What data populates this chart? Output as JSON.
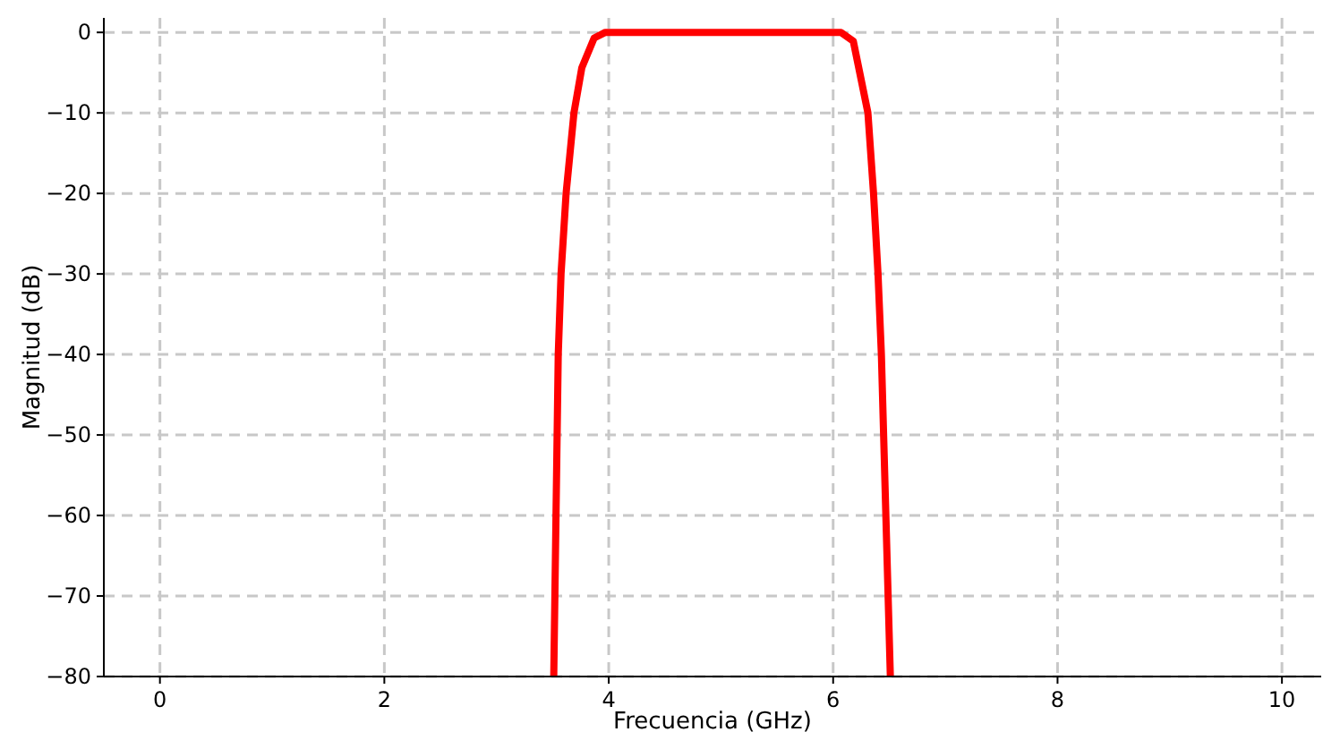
{
  "chart_data": {
    "type": "line",
    "xlabel": "Frecuencia (GHz)",
    "ylabel": "Magnitud (dB)",
    "xlim": [
      -0.5,
      10.35
    ],
    "ylim": [
      -80,
      1.8
    ],
    "xticks": [
      0,
      2,
      4,
      6,
      8,
      10
    ],
    "yticks": [
      -80,
      -70,
      -60,
      -50,
      -40,
      -30,
      -20,
      -10,
      0
    ],
    "grid": true,
    "line_style": "solid",
    "marker": "none",
    "series": [
      {
        "color": "#ff0000",
        "x": [
          3.51,
          3.53,
          3.55,
          3.575,
          3.62,
          3.69,
          3.76,
          3.87,
          3.97,
          4.5,
          5.0,
          5.5,
          6.07,
          6.18,
          6.31,
          6.36,
          6.4,
          6.43,
          6.47,
          6.51
        ],
        "values": [
          -80,
          -60,
          -40,
          -30,
          -20,
          -10,
          -4.4,
          -0.7,
          0,
          0,
          0,
          0,
          0,
          -1.1,
          -10,
          -20,
          -30,
          -40,
          -60,
          -80
        ]
      }
    ]
  }
}
